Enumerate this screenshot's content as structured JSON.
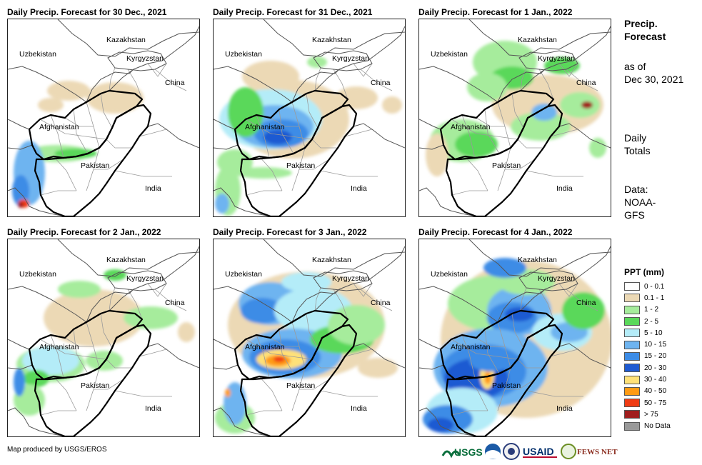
{
  "panels": [
    {
      "title": "Daily Precip. Forecast for 30 Dec., 2021"
    },
    {
      "title": "Daily Precip. Forecast for 31 Dec., 2021"
    },
    {
      "title": "Daily Precip. Forecast for 1 Jan., 2022"
    },
    {
      "title": "Daily Precip. Forecast for 2 Jan., 2022"
    },
    {
      "title": "Daily Precip. Forecast for 3 Jan., 2022"
    },
    {
      "title": "Daily Precip. Forecast for 4 Jan., 2022"
    }
  ],
  "map_labels": {
    "kazakhstan": "Kazakhstan",
    "uzbekistan": "Uzbekistan",
    "kyrgyzstan": "Kyrgyzstan",
    "china": "China",
    "afghanistan": "Afghanistan",
    "pakistan": "Pakistan",
    "india": "India"
  },
  "side": {
    "title_line1": "Precip.",
    "title_line2": "Forecast",
    "asof_line1": "as of",
    "asof_line2": "Dec 30, 2021",
    "daily_line1": "Daily",
    "daily_line2": "Totals",
    "data_line1": "Data:",
    "data_line2": "NOAA-",
    "data_line3": "GFS"
  },
  "legend": {
    "title": "PPT (mm)",
    "items": [
      {
        "label": "0 - 0.1",
        "color": "#ffffff"
      },
      {
        "label": "0.1 - 1",
        "color": "#ecd9b5"
      },
      {
        "label": "1 - 2",
        "color": "#a6ec9c"
      },
      {
        "label": "2 - 5",
        "color": "#5ad85a"
      },
      {
        "label": "5 - 10",
        "color": "#b4ecf8"
      },
      {
        "label": "10 - 15",
        "color": "#6eb4f0"
      },
      {
        "label": "15 - 20",
        "color": "#3c8ce6"
      },
      {
        "label": "20 - 30",
        "color": "#1e5ad2"
      },
      {
        "label": "30 - 40",
        "color": "#ffe178"
      },
      {
        "label": "40 - 50",
        "color": "#ff9b14"
      },
      {
        "label": "50 - 75",
        "color": "#f03c14"
      },
      {
        "label": "> 75",
        "color": "#a01e1e"
      },
      {
        "label": "No Data",
        "color": "#999999"
      }
    ]
  },
  "credit": "Map produced by USGS/EROS",
  "logos": {
    "usgs": "USGS",
    "usaid": "USAID",
    "fewsnet": "FEWS NET"
  }
}
